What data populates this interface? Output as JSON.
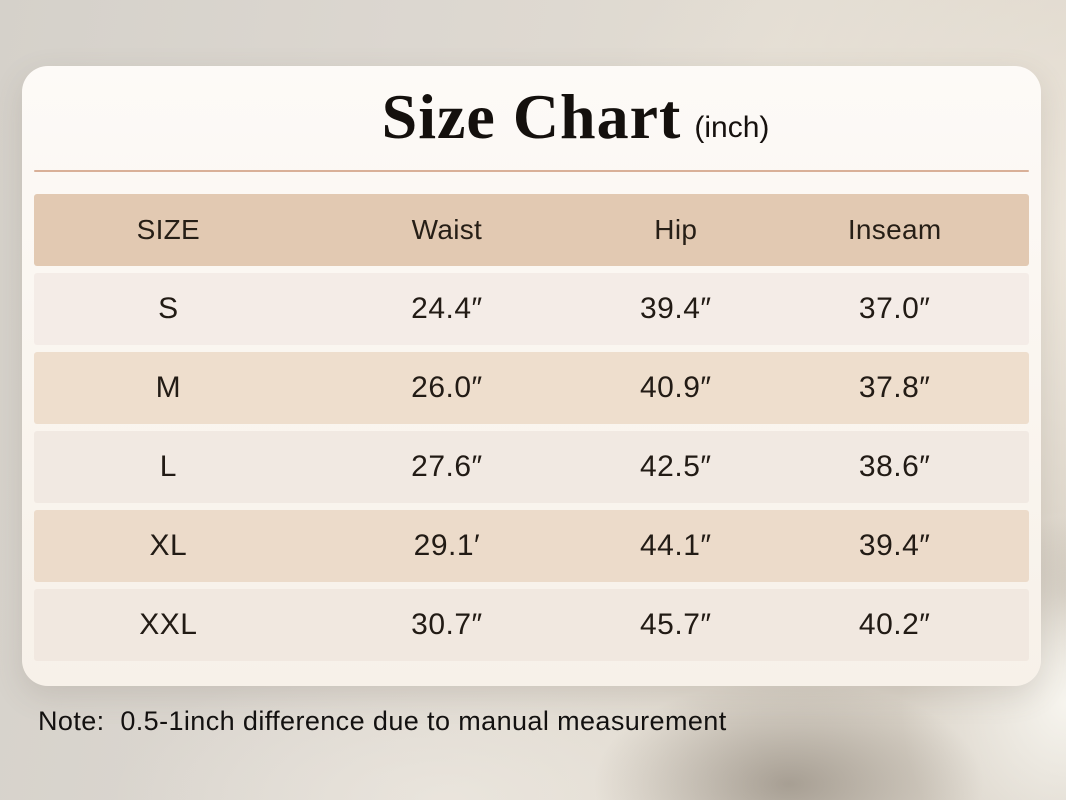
{
  "title": {
    "main": "Size Chart",
    "unit": "(inch)"
  },
  "table": {
    "headers": [
      "SIZE",
      "Waist",
      "Hip",
      "Inseam"
    ],
    "rows": [
      {
        "size": "S",
        "waist": "24.4″",
        "hip": "39.4″",
        "inseam": "37.0″"
      },
      {
        "size": "M",
        "waist": "26.0″",
        "hip": "40.9″",
        "inseam": "37.8″"
      },
      {
        "size": "L",
        "waist": "27.6″",
        "hip": "42.5″",
        "inseam": "38.6″"
      },
      {
        "size": "XL",
        "waist": "29.1′",
        "hip": "44.1″",
        "inseam": "39.4″"
      },
      {
        "size": "XXL",
        "waist": "30.7″",
        "hip": "45.7″",
        "inseam": "40.2″"
      }
    ]
  },
  "note": "Note:  0.5-1inch difference due to manual measurement",
  "colors": {
    "header_row_bg": "#e2c9b2",
    "row_bg_s": "#f4ece7",
    "row_bg_m": "#eedecd",
    "row_bg_l": "#f1e9e2",
    "row_bg_xl": "#ecdbca",
    "row_bg_xxl": "#f1e8e0",
    "card_bg": "#faf5ef",
    "divider_line": "#d9b098",
    "title_text": "#14100d",
    "body_text": "#221b15"
  },
  "chart_data": {
    "type": "table",
    "title": "Size Chart (inch)",
    "unit": "inch",
    "columns": [
      "SIZE",
      "Waist",
      "Hip",
      "Inseam"
    ],
    "rows": [
      [
        "S",
        24.4,
        39.4,
        37.0
      ],
      [
        "M",
        26.0,
        40.9,
        37.8
      ],
      [
        "L",
        27.6,
        42.5,
        38.6
      ],
      [
        "XL",
        29.1,
        44.1,
        39.4
      ],
      [
        "XXL",
        30.7,
        45.7,
        40.2
      ]
    ],
    "note": "0.5-1inch difference due to manual measurement"
  }
}
